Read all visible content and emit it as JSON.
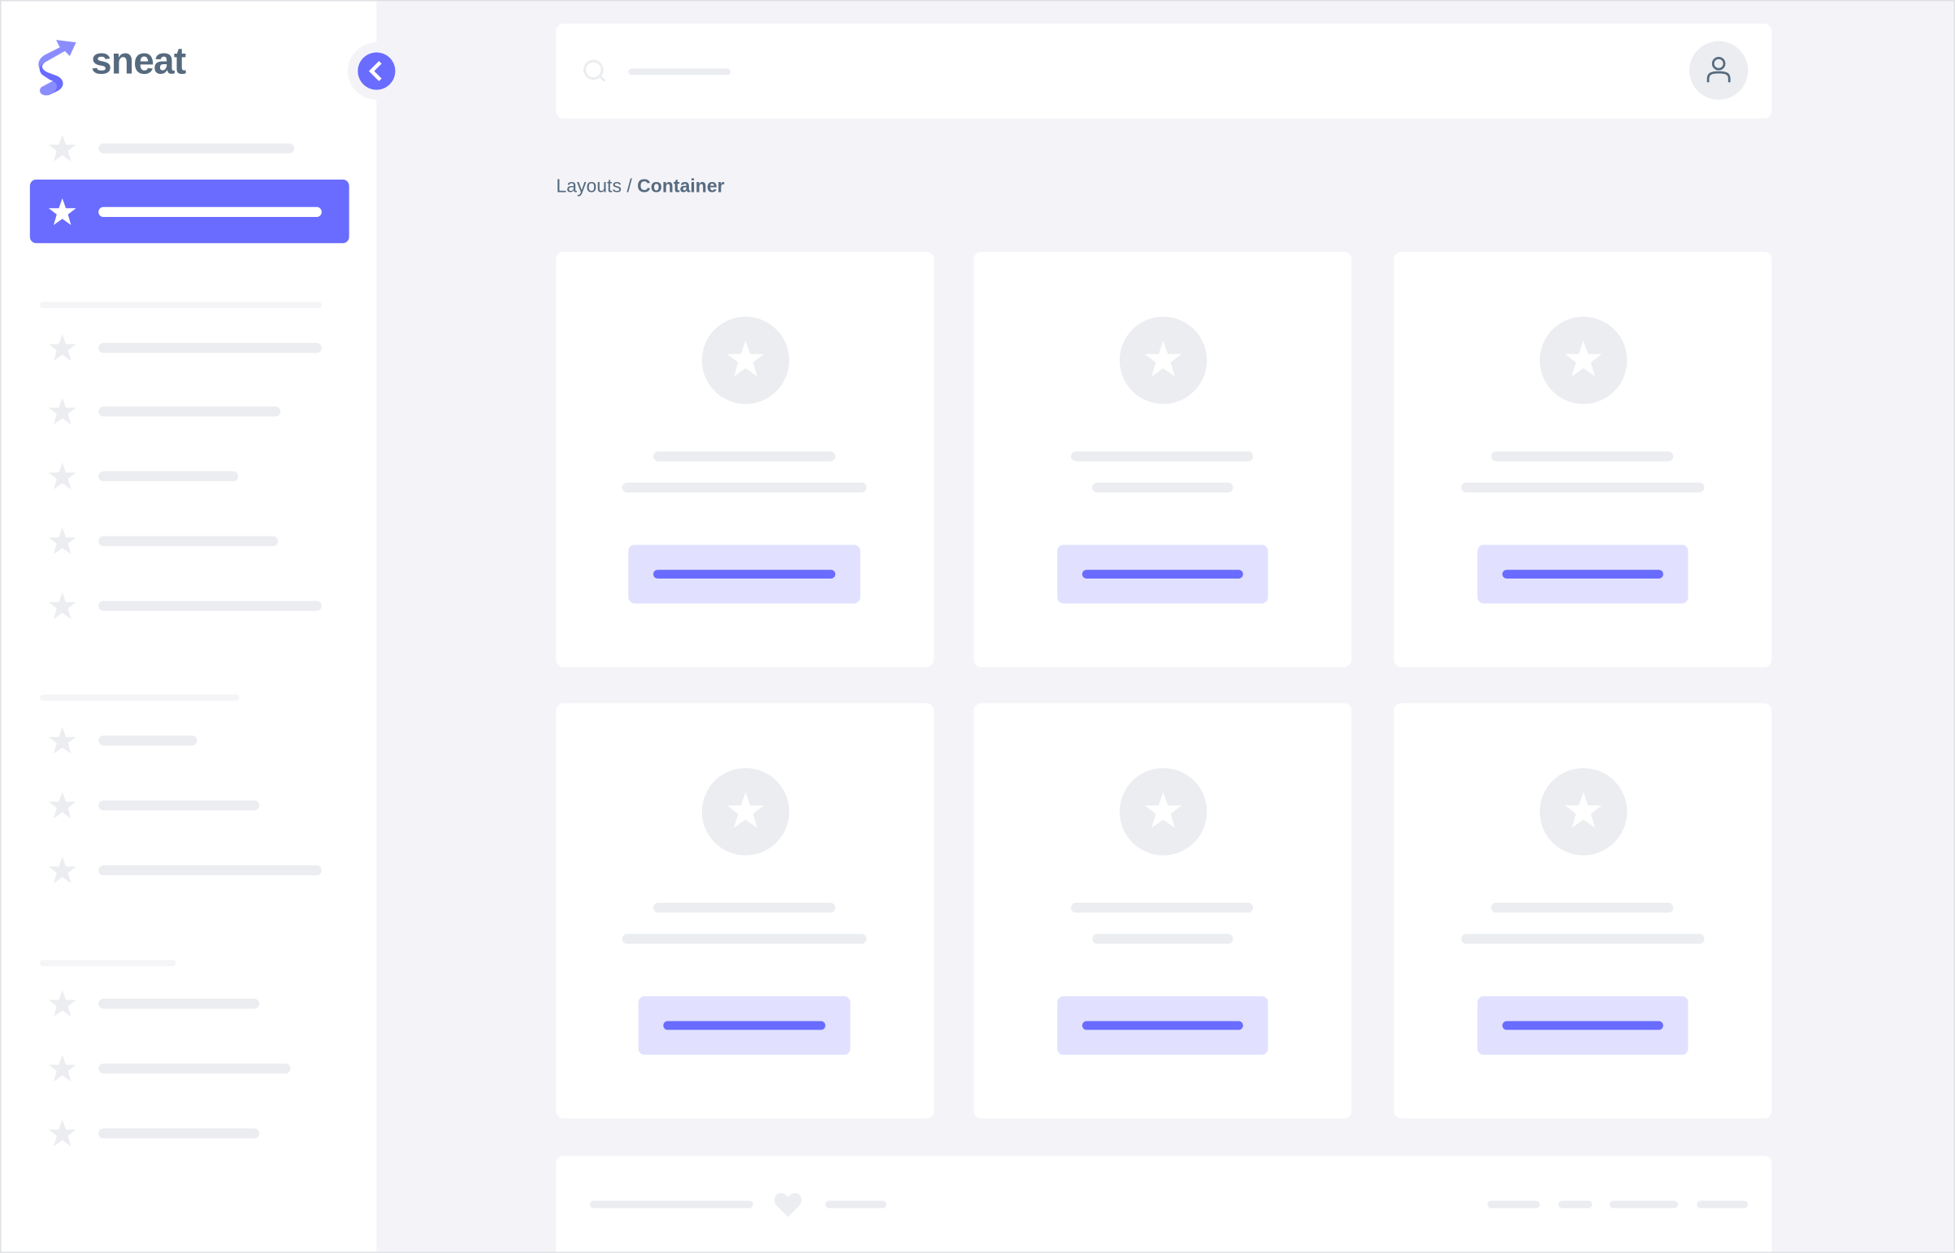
{
  "brand": {
    "name": "sneat",
    "accent": "#696cff",
    "text_color": "#566a7f"
  },
  "breadcrumb": {
    "parent": "Layouts",
    "separator": " / ",
    "current": "Container"
  },
  "icons": {
    "logo": "sneat-logo-icon",
    "collapse": "chevron-left-icon",
    "nav": "star-icon",
    "search": "search-icon",
    "user": "user-icon",
    "footer": "heart-icon"
  },
  "colors": {
    "background": "#f4f4f8",
    "skeleton": "#ebedf0",
    "button_bg": "#e1e1ff",
    "button_bar": "#696cff"
  }
}
